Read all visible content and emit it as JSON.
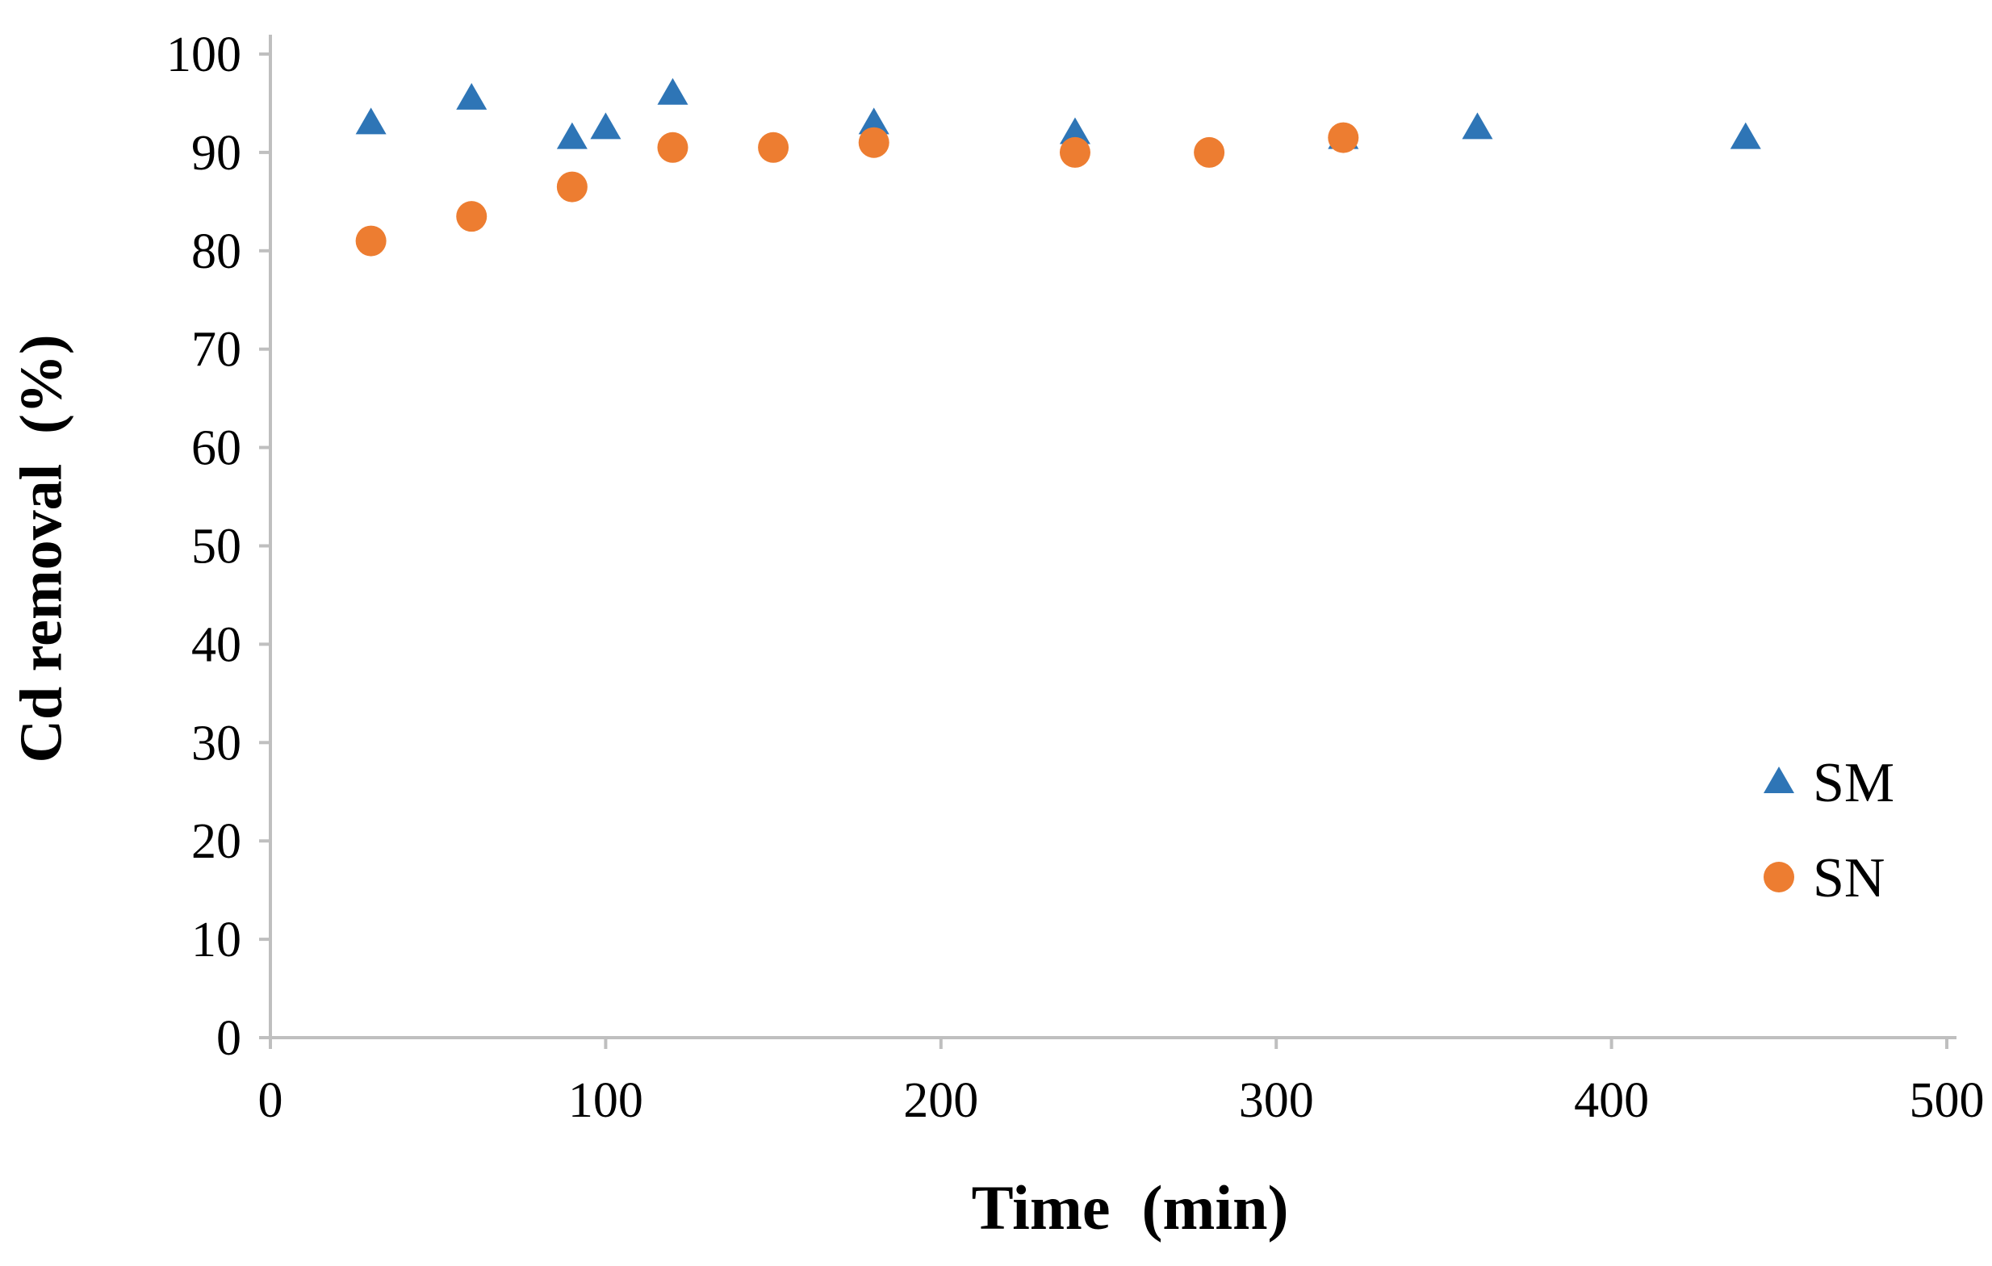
{
  "chart_data": {
    "type": "scatter",
    "title": "",
    "xlabel": "Time  (min)",
    "ylabel": "Cd removal  (%)",
    "xlim": [
      0,
      500
    ],
    "ylim": [
      0,
      100
    ],
    "x_ticks": [
      0,
      100,
      200,
      300,
      400,
      500
    ],
    "y_ticks": [
      0,
      10,
      20,
      30,
      40,
      50,
      60,
      70,
      80,
      90,
      100
    ],
    "grid": false,
    "axis_color": "#bfbfbf",
    "text_color": "#000000",
    "legend_position": "right-middle",
    "series": [
      {
        "name": "SM",
        "marker": "triangle",
        "color": "#2e75b6",
        "points": [
          [
            30,
            93
          ],
          [
            60,
            95.5
          ],
          [
            90,
            91.5
          ],
          [
            100,
            92.5
          ],
          [
            120,
            96
          ],
          [
            180,
            93
          ],
          [
            240,
            92
          ],
          [
            320,
            91.5
          ],
          [
            360,
            92.5
          ],
          [
            440,
            91.5
          ]
        ]
      },
      {
        "name": "SN",
        "marker": "circle",
        "color": "#ed7d31",
        "points": [
          [
            30,
            81
          ],
          [
            60,
            83.5
          ],
          [
            90,
            86.5
          ],
          [
            120,
            90.5
          ],
          [
            150,
            90.5
          ],
          [
            180,
            91
          ],
          [
            240,
            90
          ],
          [
            280,
            90
          ],
          [
            320,
            91.5
          ]
        ]
      }
    ]
  }
}
